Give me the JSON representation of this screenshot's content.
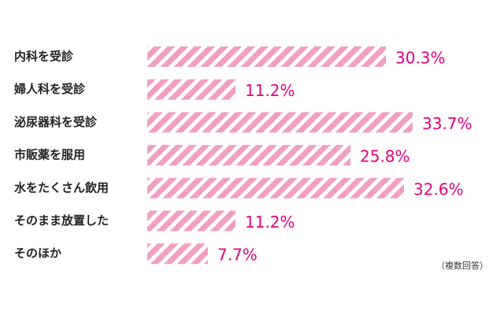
{
  "chart_data": {
    "type": "bar",
    "orientation": "horizontal",
    "categories": [
      "内科を受診",
      "婦人科を受診",
      "泌尿器科を受診",
      "市販薬を服用",
      "水をたくさん飲用",
      "そのまま放置した",
      "そのほか"
    ],
    "values": [
      30.3,
      11.2,
      33.7,
      25.8,
      32.6,
      11.2,
      7.7
    ],
    "value_labels": [
      "30.3%",
      "11.2%",
      "33.7%",
      "25.8%",
      "32.6%",
      "11.2%",
      "7.7%"
    ],
    "color": "#f19ec2",
    "label_color": "#e4007f",
    "annotation": "（複数回答）"
  }
}
